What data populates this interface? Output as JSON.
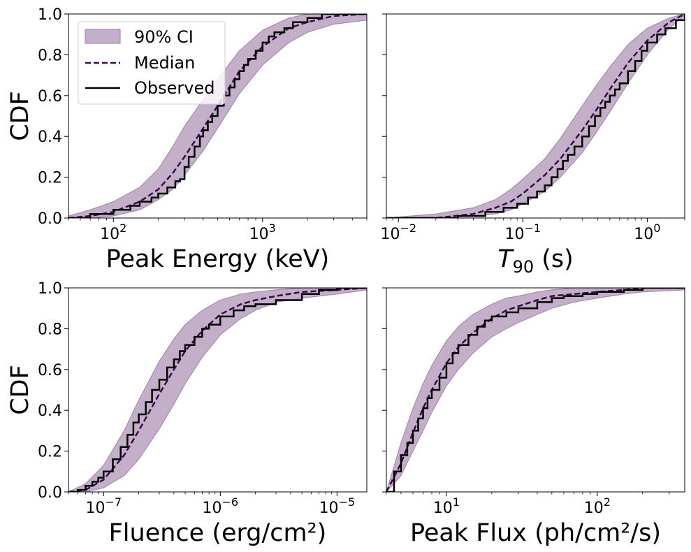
{
  "colors": {
    "band": "#c4afc9",
    "band_edge": "#a98ab4",
    "median": "#3b0a4a",
    "observed": "#000000"
  },
  "legend": {
    "placement": "upper-left of first panel",
    "ci_label": "90% CI",
    "median_label": "Median",
    "observed_label": "Observed"
  },
  "chart_data": [
    {
      "type": "line",
      "xlabel": "Peak Energy (keV)",
      "ylabel": "CDF",
      "xscale": "log",
      "xlim": [
        50,
        5000
      ],
      "ylim": [
        0,
        1
      ],
      "yticks": [
        "0.0",
        "0.2",
        "0.4",
        "0.6",
        "0.8",
        "1.0"
      ],
      "xticks": [
        {
          "value": 100,
          "base": "10",
          "exp": "2"
        },
        {
          "value": 1000,
          "base": "10",
          "exp": "3"
        }
      ],
      "show_yticklabels": true,
      "series": [
        {
          "name": "90% CI",
          "kind": "band",
          "x": [
            50,
            70,
            100,
            150,
            200,
            250,
            300,
            400,
            500,
            700,
            1000,
            1500,
            2000,
            3000,
            5000
          ],
          "lower": [
            0.0,
            0.0,
            0.01,
            0.04,
            0.09,
            0.14,
            0.21,
            0.33,
            0.44,
            0.61,
            0.75,
            0.86,
            0.91,
            0.95,
            0.97
          ],
          "upper": [
            0.01,
            0.04,
            0.08,
            0.15,
            0.24,
            0.35,
            0.45,
            0.58,
            0.68,
            0.82,
            0.92,
            0.98,
            1.0,
            1.0,
            1.0
          ]
        },
        {
          "name": "Median",
          "kind": "dashed",
          "x": [
            50,
            70,
            100,
            150,
            200,
            250,
            300,
            400,
            500,
            700,
            1000,
            1500,
            2000,
            3000,
            5000
          ],
          "y": [
            0.0,
            0.01,
            0.03,
            0.08,
            0.14,
            0.22,
            0.3,
            0.44,
            0.55,
            0.72,
            0.84,
            0.93,
            0.96,
            0.99,
            1.0
          ]
        },
        {
          "name": "Observed",
          "kind": "step",
          "x": [
            50,
            70,
            100,
            130,
            150,
            180,
            200,
            230,
            260,
            280,
            300,
            320,
            350,
            380,
            400,
            430,
            460,
            500,
            550,
            600,
            650,
            700,
            750,
            800,
            900,
            1000,
            1100,
            1200,
            1400,
            1600,
            2000,
            2500,
            3000,
            5000
          ],
          "y": [
            0.0,
            0.02,
            0.04,
            0.06,
            0.08,
            0.1,
            0.12,
            0.15,
            0.18,
            0.19,
            0.25,
            0.3,
            0.35,
            0.4,
            0.43,
            0.47,
            0.5,
            0.55,
            0.6,
            0.64,
            0.68,
            0.72,
            0.75,
            0.78,
            0.82,
            0.86,
            0.89,
            0.91,
            0.93,
            0.96,
            0.98,
            1.0,
            1.0,
            1.0
          ]
        }
      ]
    },
    {
      "type": "line",
      "xlabel": "T",
      "xlabel_sub": "90",
      "xlabel_suffix": " (s)",
      "ylabel": "",
      "xscale": "log",
      "xlim": [
        0.008,
        2.0
      ],
      "ylim": [
        0,
        1
      ],
      "yticks": [
        "0.0",
        "0.2",
        "0.4",
        "0.6",
        "0.8",
        "1.0"
      ],
      "xticks": [
        {
          "value": 0.01,
          "base": "10",
          "exp": "−2"
        },
        {
          "value": 0.1,
          "base": "10",
          "exp": "−1"
        },
        {
          "value": 1,
          "base": "10",
          "exp": "0"
        }
      ],
      "show_yticklabels": false,
      "series": [
        {
          "name": "90% CI",
          "kind": "band",
          "x": [
            0.008,
            0.02,
            0.04,
            0.06,
            0.08,
            0.1,
            0.15,
            0.2,
            0.3,
            0.4,
            0.5,
            0.7,
            1.0,
            1.5,
            2.0
          ],
          "lower": [
            0.0,
            0.0,
            0.01,
            0.02,
            0.04,
            0.07,
            0.13,
            0.2,
            0.32,
            0.43,
            0.52,
            0.66,
            0.8,
            0.93,
            0.99
          ],
          "upper": [
            0.0,
            0.02,
            0.05,
            0.09,
            0.14,
            0.19,
            0.29,
            0.39,
            0.55,
            0.66,
            0.74,
            0.85,
            0.93,
            0.98,
            1.0
          ]
        },
        {
          "name": "Median",
          "kind": "dashed",
          "x": [
            0.008,
            0.02,
            0.04,
            0.06,
            0.08,
            0.1,
            0.15,
            0.2,
            0.3,
            0.4,
            0.5,
            0.7,
            1.0,
            1.5,
            2.0
          ],
          "y": [
            0.0,
            0.0,
            0.02,
            0.05,
            0.08,
            0.12,
            0.21,
            0.29,
            0.43,
            0.54,
            0.63,
            0.76,
            0.87,
            0.96,
            1.0
          ]
        },
        {
          "name": "Observed",
          "kind": "step",
          "x": [
            0.008,
            0.03,
            0.05,
            0.07,
            0.09,
            0.11,
            0.13,
            0.15,
            0.17,
            0.19,
            0.21,
            0.23,
            0.26,
            0.3,
            0.34,
            0.38,
            0.42,
            0.46,
            0.5,
            0.55,
            0.6,
            0.7,
            0.8,
            0.9,
            1.0,
            1.2,
            1.4,
            1.7,
            2.0
          ],
          "y": [
            0.0,
            0.01,
            0.03,
            0.05,
            0.07,
            0.1,
            0.13,
            0.16,
            0.2,
            0.24,
            0.28,
            0.31,
            0.35,
            0.4,
            0.45,
            0.5,
            0.54,
            0.57,
            0.6,
            0.63,
            0.66,
            0.72,
            0.77,
            0.82,
            0.86,
            0.9,
            0.93,
            0.97,
            1.0
          ]
        }
      ]
    },
    {
      "type": "line",
      "xlabel": "Fluence (erg/cm²)",
      "ylabel": "CDF",
      "xscale": "log",
      "xlim": [
        5e-08,
        1.8e-05
      ],
      "ylim": [
        0,
        1
      ],
      "yticks": [
        "0.0",
        "0.2",
        "0.4",
        "0.6",
        "0.8",
        "1.0"
      ],
      "xticks": [
        {
          "value": 1e-07,
          "base": "10",
          "exp": "−7"
        },
        {
          "value": 1e-06,
          "base": "10",
          "exp": "−6"
        },
        {
          "value": 1e-05,
          "base": "10",
          "exp": "−5"
        }
      ],
      "show_yticklabels": true,
      "series": [
        {
          "name": "90% CI",
          "kind": "band",
          "x": [
            5e-08,
            7e-08,
            1e-07,
            1.5e-07,
            2e-07,
            3e-07,
            4e-07,
            5e-07,
            7e-07,
            1e-06,
            1.5e-06,
            2e-06,
            3e-06,
            5e-06,
            1e-05,
            1.8e-05
          ],
          "lower": [
            0.0,
            0.0,
            0.02,
            0.08,
            0.16,
            0.31,
            0.43,
            0.53,
            0.66,
            0.77,
            0.85,
            0.89,
            0.93,
            0.95,
            0.97,
            0.99
          ],
          "upper": [
            0.0,
            0.04,
            0.13,
            0.3,
            0.45,
            0.64,
            0.75,
            0.82,
            0.89,
            0.94,
            0.97,
            0.98,
            0.99,
            1.0,
            1.0,
            1.0
          ]
        },
        {
          "name": "Median",
          "kind": "dashed",
          "x": [
            5e-08,
            7e-08,
            1e-07,
            1.5e-07,
            2e-07,
            3e-07,
            4e-07,
            5e-07,
            7e-07,
            1e-06,
            1.5e-06,
            2e-06,
            3e-06,
            5e-06,
            1e-05,
            1.8e-05
          ],
          "y": [
            0.0,
            0.01,
            0.06,
            0.18,
            0.3,
            0.48,
            0.6,
            0.69,
            0.79,
            0.87,
            0.92,
            0.94,
            0.96,
            0.98,
            0.99,
            1.0
          ]
        },
        {
          "name": "Observed",
          "kind": "step",
          "x": [
            5e-08,
            6e-08,
            7e-08,
            8e-08,
            9e-08,
            1e-07,
            1.2e-07,
            1.4e-07,
            1.6e-07,
            1.8e-07,
            2e-07,
            2.3e-07,
            2.6e-07,
            3e-07,
            3.5e-07,
            4e-07,
            4.5e-07,
            5e-07,
            6e-07,
            7e-07,
            8e-07,
            1e-06,
            1.3e-06,
            1.6e-06,
            2e-06,
            3e-06,
            5e-06,
            7e-06,
            1e-05,
            1.8e-05
          ],
          "y": [
            0.0,
            0.01,
            0.03,
            0.05,
            0.07,
            0.1,
            0.16,
            0.22,
            0.28,
            0.34,
            0.38,
            0.44,
            0.5,
            0.55,
            0.61,
            0.65,
            0.69,
            0.72,
            0.76,
            0.8,
            0.82,
            0.86,
            0.89,
            0.91,
            0.92,
            0.94,
            0.97,
            0.99,
            1.0,
            1.0
          ]
        }
      ]
    },
    {
      "type": "line",
      "xlabel": "Peak Flux (ph/cm²/s)",
      "ylabel": "",
      "xscale": "log",
      "xlim": [
        4,
        380
      ],
      "ylim": [
        0,
        1
      ],
      "yticks": [
        "0.0",
        "0.2",
        "0.4",
        "0.6",
        "0.8",
        "1.0"
      ],
      "xticks": [
        {
          "value": 10,
          "base": "10",
          "exp": "1"
        },
        {
          "value": 100,
          "base": "10",
          "exp": "2"
        }
      ],
      "show_yticklabels": false,
      "series": [
        {
          "name": "90% CI",
          "kind": "band",
          "x": [
            4,
            5,
            6,
            7,
            8,
            10,
            12,
            15,
            20,
            25,
            30,
            40,
            50,
            70,
            100,
            150,
            200,
            380
          ],
          "lower": [
            0.0,
            0.08,
            0.2,
            0.3,
            0.39,
            0.52,
            0.6,
            0.68,
            0.76,
            0.8,
            0.83,
            0.87,
            0.9,
            0.93,
            0.95,
            0.97,
            0.98,
            0.99
          ],
          "upper": [
            0.0,
            0.24,
            0.41,
            0.53,
            0.62,
            0.74,
            0.81,
            0.87,
            0.92,
            0.95,
            0.96,
            0.98,
            0.99,
            1.0,
            1.0,
            1.0,
            1.0,
            1.0
          ]
        },
        {
          "name": "Median",
          "kind": "dashed",
          "x": [
            4,
            5,
            6,
            7,
            8,
            10,
            12,
            15,
            20,
            25,
            30,
            40,
            50,
            70,
            100,
            150,
            200,
            380
          ],
          "y": [
            0.0,
            0.14,
            0.29,
            0.41,
            0.5,
            0.63,
            0.71,
            0.78,
            0.85,
            0.89,
            0.91,
            0.94,
            0.96,
            0.97,
            0.98,
            0.99,
            1.0,
            1.0
          ]
        },
        {
          "name": "Observed",
          "kind": "step",
          "x": [
            4,
            4.5,
            5,
            5.5,
            6,
            6.5,
            7,
            7.5,
            8,
            9,
            10,
            11,
            12,
            14,
            16,
            18,
            20,
            25,
            30,
            40,
            50,
            60,
            80,
            100,
            150,
            200,
            380
          ],
          "y": [
            0.0,
            0.1,
            0.18,
            0.24,
            0.3,
            0.36,
            0.41,
            0.46,
            0.5,
            0.56,
            0.63,
            0.68,
            0.72,
            0.77,
            0.81,
            0.84,
            0.86,
            0.88,
            0.9,
            0.93,
            0.95,
            0.96,
            0.97,
            0.98,
            0.99,
            1.0,
            1.0
          ]
        }
      ]
    }
  ]
}
